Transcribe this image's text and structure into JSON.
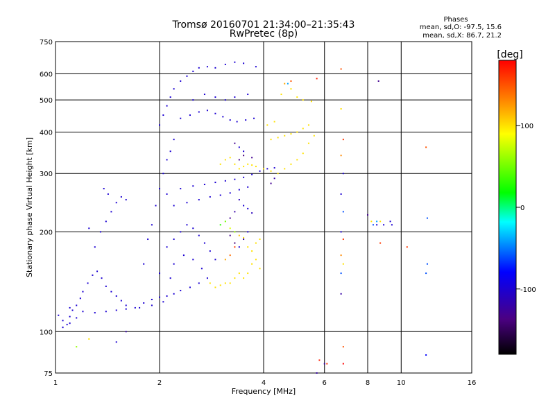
{
  "header": {
    "title": "Tromsø 20160701 21:34:00–21:35:43",
    "subtitle": "RwPretec (8p)",
    "stats_title": "Phases",
    "stats_o": "mean, sd,O: -97.5, 15.6",
    "stats_x": "mean, sd,X:  86.7, 21.2"
  },
  "colorbar": {
    "label": "[deg]",
    "range": [
      -180,
      180
    ],
    "ticks": [
      100,
      0,
      -100
    ],
    "stops": [
      "#000000",
      "#4b0082",
      "#0000ff",
      "#00ffff",
      "#00ff00",
      "#ffff00",
      "#ff8000",
      "#ff0000"
    ]
  },
  "chart_data": {
    "type": "scatter",
    "title": "Tromsø 20160701 21:34:00–21:35:43",
    "subtitle": "RwPretec (8p)",
    "xlabel": "Frequency [MHz]",
    "ylabel": "Stationary phase Virtual Height [km]",
    "xscale": "log",
    "yscale": "log",
    "xlim": [
      1,
      16
    ],
    "ylim": [
      75,
      750
    ],
    "xticks": [
      1,
      2,
      4,
      6,
      8,
      10,
      16
    ],
    "yticks": [
      75,
      100,
      200,
      300,
      400,
      500,
      600,
      750
    ],
    "grid": true,
    "color_encodes": "phase [deg]",
    "points": [
      [
        1.02,
        112,
        -100
      ],
      [
        1.05,
        108,
        -100
      ],
      [
        1.08,
        105,
        -100
      ],
      [
        1.1,
        111,
        -100
      ],
      [
        1.12,
        116,
        -100
      ],
      [
        1.15,
        120,
        -100
      ],
      [
        1.18,
        126,
        -100
      ],
      [
        1.2,
        132,
        -100
      ],
      [
        1.24,
        140,
        -100
      ],
      [
        1.28,
        148,
        -100
      ],
      [
        1.32,
        152,
        -100
      ],
      [
        1.36,
        145,
        -100
      ],
      [
        1.4,
        137,
        -100
      ],
      [
        1.45,
        132,
        -100
      ],
      [
        1.5,
        128,
        -100
      ],
      [
        1.55,
        124,
        -100
      ],
      [
        1.6,
        120,
        -100
      ],
      [
        1.7,
        118,
        -100
      ],
      [
        1.8,
        122,
        -100
      ],
      [
        1.9,
        125,
        -100
      ],
      [
        2.0,
        127,
        -100
      ],
      [
        2.1,
        128,
        -100
      ],
      [
        2.2,
        130,
        -100
      ],
      [
        2.3,
        133,
        -100
      ],
      [
        2.45,
        136,
        -100
      ],
      [
        2.6,
        140,
        -100
      ],
      [
        2.75,
        145,
        -100
      ],
      [
        1.1,
        118,
        -100
      ],
      [
        1.2,
        115,
        -100
      ],
      [
        1.3,
        114,
        -100
      ],
      [
        1.4,
        115,
        -100
      ],
      [
        1.5,
        116,
        -100
      ],
      [
        1.6,
        117,
        -100
      ],
      [
        1.75,
        118,
        -100
      ],
      [
        1.9,
        120,
        -100
      ],
      [
        2.05,
        123,
        -100
      ],
      [
        1.05,
        103,
        -100
      ],
      [
        1.1,
        106,
        -100
      ],
      [
        1.15,
        110,
        -100
      ],
      [
        1.3,
        180,
        -100
      ],
      [
        1.35,
        200,
        -100
      ],
      [
        1.4,
        215,
        -100
      ],
      [
        1.45,
        230,
        -100
      ],
      [
        1.5,
        245,
        -100
      ],
      [
        1.55,
        255,
        -100
      ],
      [
        1.6,
        250,
        -100
      ],
      [
        1.38,
        270,
        -100
      ],
      [
        1.42,
        260,
        -100
      ],
      [
        1.25,
        205,
        -100
      ],
      [
        1.8,
        160,
        -100
      ],
      [
        1.85,
        190,
        -100
      ],
      [
        1.9,
        210,
        -100
      ],
      [
        1.95,
        240,
        -100
      ],
      [
        2.0,
        270,
        -100
      ],
      [
        2.05,
        300,
        -100
      ],
      [
        2.1,
        330,
        -100
      ],
      [
        2.15,
        350,
        -100
      ],
      [
        2.2,
        380,
        -100
      ],
      [
        2.0,
        420,
        -100
      ],
      [
        2.05,
        450,
        -100
      ],
      [
        2.1,
        480,
        -100
      ],
      [
        2.15,
        510,
        -100
      ],
      [
        2.2,
        540,
        -100
      ],
      [
        2.3,
        570,
        -100
      ],
      [
        2.4,
        590,
        -100
      ],
      [
        2.5,
        610,
        -100
      ],
      [
        2.6,
        625,
        -100
      ],
      [
        2.75,
        630,
        -100
      ],
      [
        2.9,
        625,
        -100
      ],
      [
        3.1,
        640,
        -100
      ],
      [
        3.3,
        650,
        -100
      ],
      [
        3.5,
        645,
        -100
      ],
      [
        3.8,
        630,
        -100
      ],
      [
        2.3,
        440,
        -100
      ],
      [
        2.45,
        450,
        -100
      ],
      [
        2.6,
        460,
        -100
      ],
      [
        2.75,
        465,
        -100
      ],
      [
        2.9,
        455,
        -100
      ],
      [
        3.05,
        445,
        -100
      ],
      [
        3.2,
        435,
        -100
      ],
      [
        3.35,
        430,
        -100
      ],
      [
        3.55,
        435,
        -100
      ],
      [
        3.75,
        440,
        -100
      ],
      [
        2.5,
        500,
        -100
      ],
      [
        2.7,
        520,
        -100
      ],
      [
        2.9,
        510,
        -100
      ],
      [
        3.1,
        500,
        -100
      ],
      [
        3.3,
        510,
        -100
      ],
      [
        3.6,
        520,
        -100
      ],
      [
        2.1,
        260,
        -100
      ],
      [
        2.3,
        270,
        -100
      ],
      [
        2.5,
        275,
        -100
      ],
      [
        2.7,
        278,
        -100
      ],
      [
        2.9,
        282,
        -100
      ],
      [
        3.1,
        285,
        -100
      ],
      [
        3.3,
        288,
        -100
      ],
      [
        3.5,
        292,
        -100
      ],
      [
        3.7,
        298,
        -100
      ],
      [
        3.9,
        305,
        -100
      ],
      [
        4.1,
        310,
        -100
      ],
      [
        4.3,
        312,
        -100
      ],
      [
        2.2,
        240,
        -100
      ],
      [
        2.4,
        245,
        -100
      ],
      [
        2.6,
        250,
        -100
      ],
      [
        2.8,
        255,
        -100
      ],
      [
        3.0,
        258,
        -100
      ],
      [
        3.2,
        262,
        -100
      ],
      [
        3.4,
        268,
        -100
      ],
      [
        3.6,
        273,
        -100
      ],
      [
        2.1,
        180,
        -100
      ],
      [
        2.2,
        190,
        -100
      ],
      [
        2.3,
        200,
        -100
      ],
      [
        2.4,
        210,
        -100
      ],
      [
        2.5,
        205,
        -100
      ],
      [
        2.6,
        195,
        -100
      ],
      [
        2.7,
        185,
        -100
      ],
      [
        2.8,
        175,
        -100
      ],
      [
        2.9,
        165,
        -100
      ],
      [
        2.2,
        160,
        -100
      ],
      [
        2.35,
        170,
        -100
      ],
      [
        2.5,
        165,
        -100
      ],
      [
        2.65,
        155,
        -100
      ],
      [
        2.0,
        150,
        -100
      ],
      [
        2.15,
        145,
        -100
      ],
      [
        3.4,
        330,
        -130
      ],
      [
        3.5,
        340,
        -140
      ],
      [
        3.7,
        335,
        -130
      ],
      [
        3.3,
        370,
        -130
      ],
      [
        3.4,
        360,
        -100
      ],
      [
        3.5,
        350,
        -100
      ],
      [
        3.2,
        220,
        -130
      ],
      [
        3.3,
        230,
        -120
      ],
      [
        3.4,
        250,
        -110
      ],
      [
        3.5,
        240,
        -100
      ],
      [
        3.6,
        235,
        -100
      ],
      [
        3.7,
        228,
        -110
      ],
      [
        3.2,
        195,
        -130
      ],
      [
        3.3,
        185,
        -140
      ],
      [
        3.4,
        180,
        -100
      ],
      [
        3.5,
        190,
        -120
      ],
      [
        3.6,
        200,
        -100
      ],
      [
        3.0,
        320,
        100
      ],
      [
        3.1,
        330,
        100
      ],
      [
        3.2,
        335,
        100
      ],
      [
        3.3,
        320,
        100
      ],
      [
        3.4,
        310,
        100
      ],
      [
        3.5,
        315,
        100
      ],
      [
        3.6,
        320,
        100
      ],
      [
        3.7,
        318,
        100
      ],
      [
        3.8,
        315,
        100
      ],
      [
        4.0,
        310,
        100
      ],
      [
        4.2,
        305,
        100
      ],
      [
        4.4,
        300,
        100
      ],
      [
        4.6,
        310,
        100
      ],
      [
        4.8,
        320,
        100
      ],
      [
        5.0,
        330,
        100
      ],
      [
        5.2,
        345,
        100
      ],
      [
        5.4,
        370,
        100
      ],
      [
        5.6,
        390,
        100
      ],
      [
        4.2,
        380,
        100
      ],
      [
        4.4,
        385,
        100
      ],
      [
        4.6,
        390,
        100
      ],
      [
        4.8,
        395,
        100
      ],
      [
        5.0,
        400,
        100
      ],
      [
        5.2,
        410,
        100
      ],
      [
        5.4,
        420,
        100
      ],
      [
        4.3,
        430,
        100
      ],
      [
        4.1,
        420,
        100
      ],
      [
        4.6,
        560,
        120
      ],
      [
        4.8,
        540,
        100
      ],
      [
        4.5,
        520,
        100
      ],
      [
        5.0,
        510,
        100
      ],
      [
        5.2,
        500,
        100
      ],
      [
        5.5,
        495,
        100
      ],
      [
        3.6,
        180,
        100
      ],
      [
        3.7,
        175,
        100
      ],
      [
        3.8,
        185,
        100
      ],
      [
        3.9,
        190,
        100
      ],
      [
        3.7,
        160,
        100
      ],
      [
        3.8,
        165,
        100
      ],
      [
        3.9,
        155,
        100
      ],
      [
        3.6,
        150,
        100
      ],
      [
        3.5,
        145,
        100
      ],
      [
        3.2,
        140,
        100
      ],
      [
        3.3,
        145,
        100
      ],
      [
        3.4,
        150,
        100
      ],
      [
        2.8,
        140,
        100
      ],
      [
        2.9,
        136,
        100
      ],
      [
        3.0,
        138,
        100
      ],
      [
        3.1,
        140,
        100
      ],
      [
        3.0,
        210,
        30
      ],
      [
        3.1,
        215,
        50
      ],
      [
        3.2,
        205,
        80
      ],
      [
        3.3,
        200,
        60
      ],
      [
        3.4,
        195,
        110
      ],
      [
        3.5,
        192,
        100
      ],
      [
        3.3,
        180,
        160
      ],
      [
        3.2,
        170,
        140
      ],
      [
        3.1,
        165,
        120
      ],
      [
        4.7,
        560,
        -40
      ],
      [
        4.8,
        570,
        150
      ],
      [
        5.7,
        580,
        170
      ],
      [
        4.2,
        280,
        -130
      ],
      [
        4.3,
        290,
        -120
      ],
      [
        6.7,
        620,
        150
      ],
      [
        6.7,
        470,
        100
      ],
      [
        6.8,
        380,
        160
      ],
      [
        6.7,
        340,
        130
      ],
      [
        6.8,
        300,
        -100
      ],
      [
        6.7,
        260,
        -100
      ],
      [
        6.8,
        230,
        -60
      ],
      [
        6.7,
        200,
        -100
      ],
      [
        6.8,
        190,
        160
      ],
      [
        6.7,
        170,
        130
      ],
      [
        6.8,
        160,
        100
      ],
      [
        6.7,
        150,
        -60
      ],
      [
        6.7,
        130,
        -120
      ],
      [
        6.8,
        90,
        150
      ],
      [
        6.8,
        80,
        180
      ],
      [
        8.0,
        225,
        -130
      ],
      [
        8.2,
        215,
        100
      ],
      [
        8.3,
        210,
        -60
      ],
      [
        8.5,
        210,
        -100
      ],
      [
        8.7,
        215,
        100
      ],
      [
        8.9,
        210,
        -100
      ],
      [
        9.3,
        215,
        -100
      ],
      [
        9.4,
        210,
        -100
      ],
      [
        8.5,
        215,
        -40
      ],
      [
        8.7,
        185,
        160
      ],
      [
        8.6,
        570,
        -130
      ],
      [
        11.8,
        360,
        150
      ],
      [
        11.9,
        220,
        -60
      ],
      [
        11.9,
        160,
        -60
      ],
      [
        11.8,
        150,
        -60
      ],
      [
        11.8,
        85,
        -80
      ],
      [
        10.4,
        180,
        160
      ],
      [
        6.1,
        80,
        160
      ],
      [
        6.0,
        80,
        -120
      ],
      [
        5.7,
        75,
        -120
      ],
      [
        5.8,
        82,
        170
      ],
      [
        1.25,
        95,
        100
      ],
      [
        1.15,
        90,
        60
      ],
      [
        1.5,
        93,
        -100
      ],
      [
        1.6,
        100,
        -120
      ]
    ]
  }
}
